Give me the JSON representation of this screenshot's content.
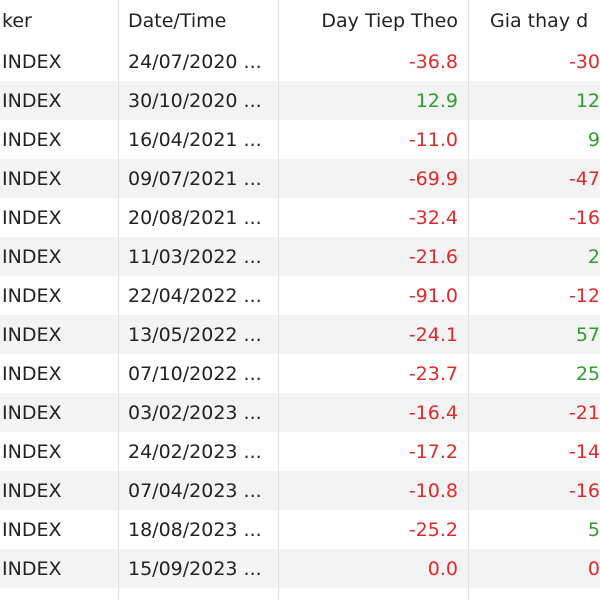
{
  "table": {
    "header": [
      "ker",
      "Date/Time",
      "Day Tiep Theo",
      "Gia thay d"
    ],
    "rows": [
      [
        "INDEX",
        "24/07/2020 ...",
        "-36.8",
        "-30"
      ],
      [
        "INDEX",
        "30/10/2020 ...",
        "12.9",
        "12"
      ],
      [
        "INDEX",
        "16/04/2021 ...",
        "-11.0",
        "9"
      ],
      [
        "INDEX",
        "09/07/2021 ...",
        "-69.9",
        "-47"
      ],
      [
        "INDEX",
        "20/08/2021 ...",
        "-32.4",
        "-16"
      ],
      [
        "INDEX",
        "11/03/2022 ...",
        "-21.6",
        "2"
      ],
      [
        "INDEX",
        "22/04/2022 ...",
        "-91.0",
        "-12"
      ],
      [
        "INDEX",
        "13/05/2022 ...",
        "-24.1",
        "57"
      ],
      [
        "INDEX",
        "07/10/2022 ...",
        "-23.7",
        "25"
      ],
      [
        "INDEX",
        "03/02/2023 ...",
        "-16.4",
        "-21"
      ],
      [
        "INDEX",
        "24/02/2023 ...",
        "-17.2",
        "-14"
      ],
      [
        "INDEX",
        "07/04/2023 ...",
        "-10.8",
        "-16"
      ],
      [
        "INDEX",
        "18/08/2023 ...",
        "-25.2",
        "5"
      ],
      [
        "INDEX",
        "15/09/2023 ...",
        "0.0",
        "0"
      ]
    ]
  }
}
